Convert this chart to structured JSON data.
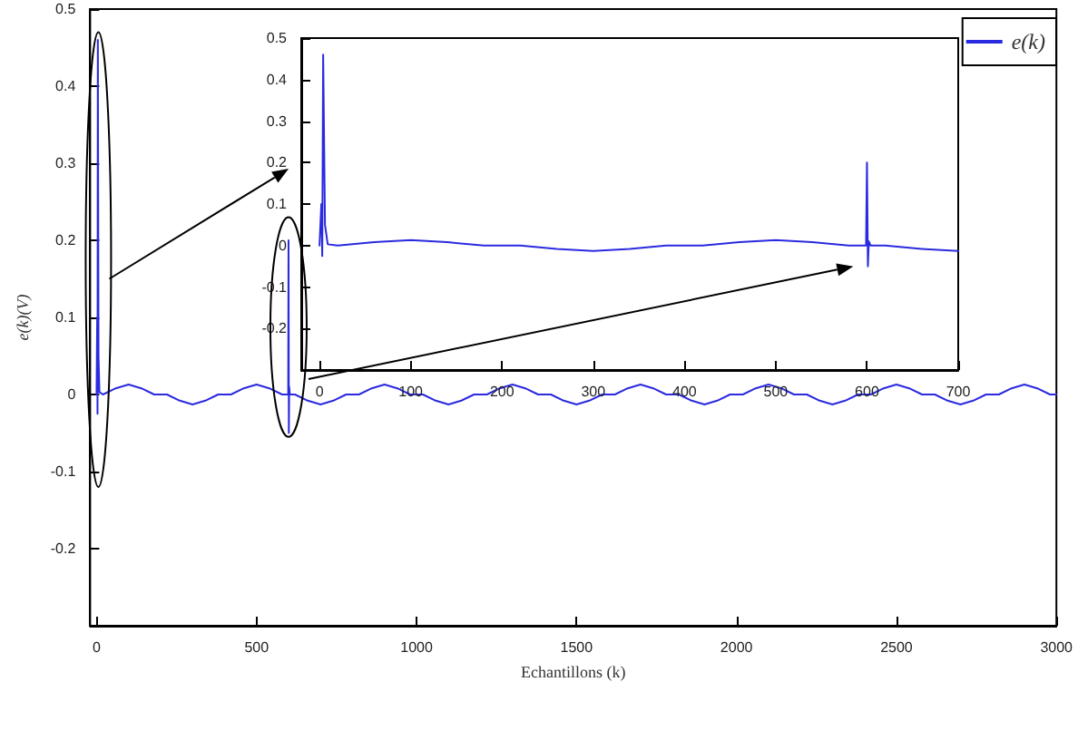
{
  "chart_data": [
    {
      "type": "line",
      "xlabel": "Echantillons (k)",
      "ylabel": "e(k)(V)",
      "legend": "top right",
      "grid": false,
      "xlim": [
        -20,
        3000
      ],
      "xticks": [
        0,
        500,
        1000,
        1500,
        2000,
        2500,
        3000
      ],
      "ylim": [
        -0.3,
        0.5
      ],
      "yticks": [
        -0.2,
        -0.1,
        0,
        0.1,
        0.2,
        0.3,
        0.4,
        0.5
      ],
      "series": [
        {
          "name": "e(k)",
          "color": "#2a2ae0",
          "x": [
            0,
            2,
            3,
            4,
            6,
            9,
            20,
            60,
            100,
            140,
            180,
            220,
            260,
            300,
            340,
            380,
            420,
            460,
            500,
            540,
            580,
            599,
            600,
            601,
            602,
            604,
            620,
            660,
            700,
            740,
            780,
            820,
            860,
            900,
            940,
            980,
            1020,
            1060,
            1100,
            1140,
            1180,
            1220,
            1260,
            1300,
            1340,
            1380,
            1420,
            1460,
            1500,
            1540,
            1580,
            1620,
            1660,
            1700,
            1740,
            1780,
            1820,
            1860,
            1900,
            1940,
            1980,
            2020,
            2060,
            2100,
            2140,
            2180,
            2220,
            2260,
            2300,
            2340,
            2380,
            2420,
            2460,
            2500,
            2540,
            2580,
            2620,
            2660,
            2700,
            2740,
            2780,
            2820,
            2860,
            2900,
            2940,
            2980,
            3000
          ],
          "values": [
            0,
            0.1,
            -0.025,
            0.46,
            0.05,
            0.003,
            0,
            0.008,
            0.013,
            0.008,
            0,
            0,
            -0.008,
            -0.013,
            -0.008,
            0,
            0,
            0.008,
            0.013,
            0.008,
            0,
            0,
            0.2,
            -0.05,
            0.01,
            0,
            0,
            -0.008,
            -0.013,
            -0.008,
            0,
            0,
            0.008,
            0.013,
            0.008,
            0,
            0,
            -0.008,
            -0.013,
            -0.008,
            0,
            0,
            0.008,
            0.013,
            0.008,
            0,
            0,
            -0.008,
            -0.013,
            -0.008,
            0,
            0,
            0.008,
            0.013,
            0.008,
            0,
            0,
            -0.008,
            -0.013,
            -0.008,
            0,
            0,
            0.008,
            0.013,
            0.008,
            0,
            0,
            -0.008,
            -0.013,
            -0.008,
            0,
            0,
            0.008,
            0.013,
            0.008,
            0,
            0,
            -0.008,
            -0.013,
            -0.008,
            0,
            0,
            0.008,
            0.013,
            0.008,
            0,
            0
          ]
        }
      ]
    },
    {
      "type": "line",
      "grid": false,
      "xlim": [
        -20,
        700
      ],
      "xticks": [
        0,
        100,
        200,
        300,
        400,
        500,
        600,
        700
      ],
      "ylim": [
        -0.3,
        0.5
      ],
      "yticks": [
        -0.2,
        -0.1,
        0,
        0.1,
        0.2,
        0.3,
        0.4,
        0.5
      ],
      "series": [
        {
          "color": "#2a2ae0",
          "x": [
            0,
            2,
            3,
            4,
            6,
            9,
            20,
            60,
            100,
            140,
            180,
            220,
            260,
            300,
            340,
            380,
            420,
            460,
            500,
            540,
            580,
            599,
            600,
            601,
            602,
            604,
            620,
            660,
            700
          ],
          "values": [
            0,
            0.1,
            -0.025,
            0.46,
            0.05,
            0.003,
            0,
            0.008,
            0.013,
            0.008,
            0,
            0,
            -0.008,
            -0.013,
            -0.008,
            0,
            0,
            0.008,
            0.013,
            0.008,
            0,
            0,
            0.2,
            -0.05,
            0.01,
            0,
            0,
            -0.008,
            -0.013
          ]
        }
      ]
    }
  ]
}
